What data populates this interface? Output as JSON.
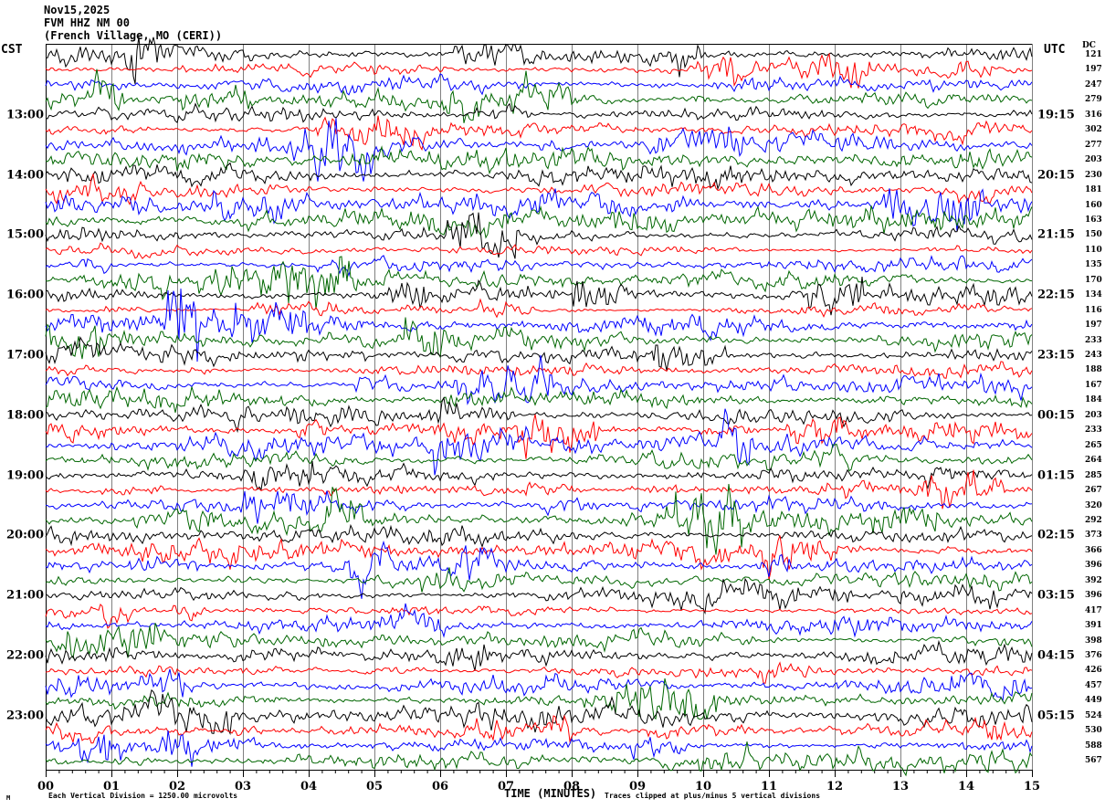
{
  "title": {
    "date": "Nov15,2025",
    "station": "FVM HHZ NM 00",
    "location": "(French Village, MO (CERI))"
  },
  "left_axis": {
    "timezone": "CST",
    "hour_labels": [
      "13:00",
      "14:00",
      "15:00",
      "16:00",
      "17:00",
      "18:00",
      "19:00",
      "20:00",
      "21:00",
      "22:00",
      "23:00"
    ]
  },
  "right_axis": {
    "timezone": "UTC",
    "dc_label": "DC",
    "hour_labels": [
      "19:15",
      "20:15",
      "21:15",
      "22:15",
      "23:15",
      "00:15",
      "01:15",
      "02:15",
      "03:15",
      "04:15",
      "05:15"
    ],
    "dc_values": [
      121,
      197,
      247,
      279,
      316,
      302,
      277,
      203,
      230,
      181,
      160,
      163,
      150,
      110,
      135,
      170,
      134,
      116,
      197,
      233,
      243,
      188,
      167,
      184,
      203,
      233,
      265,
      264,
      285,
      267,
      320,
      292,
      373,
      366,
      396,
      392,
      396,
      417,
      391,
      398,
      376,
      426,
      457,
      449,
      524,
      530,
      588,
      567
    ]
  },
  "x_axis": {
    "label": "TIME (MINUTES)",
    "tick_labels": [
      "00",
      "01",
      "02",
      "03",
      "04",
      "05",
      "06",
      "07",
      "08",
      "09",
      "10",
      "11",
      "12",
      "13",
      "14",
      "15"
    ]
  },
  "footer": {
    "scale_note": "Each Vertical Division = 1250.00 microvolts",
    "clip_note": "Traces clipped at plus/minus 5 vertical divisions",
    "corner_mark": "M"
  },
  "colors": {
    "trace_cycle": [
      "#000000",
      "#ff0000",
      "#0000ff",
      "#006600"
    ],
    "grid": "#808080",
    "frame": "#000000"
  },
  "chart_data": {
    "type": "line",
    "title": "FVM HHZ NM 00 (French Village, MO (CERI)) helicorder, Nov15,2025",
    "xlabel": "TIME (MINUTES)",
    "x_range": [
      0,
      15
    ],
    "grid": "vertical gridlines every 1 minute",
    "rows": 48,
    "minutes_per_row": 15,
    "row_color_cycle": [
      "black",
      "red",
      "blue",
      "green"
    ],
    "hour_label_row_indices": [
      4,
      8,
      12,
      16,
      20,
      24,
      28,
      32,
      36,
      40,
      44
    ],
    "left_hour_labels_cst": [
      "13:00",
      "14:00",
      "15:00",
      "16:00",
      "17:00",
      "18:00",
      "19:00",
      "20:00",
      "21:00",
      "22:00",
      "23:00"
    ],
    "right_hour_labels_utc": [
      "19:15",
      "20:15",
      "21:15",
      "22:15",
      "23:15",
      "00:15",
      "01:15",
      "02:15",
      "03:15",
      "04:15",
      "05:15"
    ],
    "dc_offset_per_row": [
      121,
      197,
      247,
      279,
      316,
      302,
      277,
      203,
      230,
      181,
      160,
      163,
      150,
      110,
      135,
      170,
      134,
      116,
      197,
      233,
      243,
      188,
      167,
      184,
      203,
      233,
      265,
      264,
      285,
      267,
      320,
      292,
      373,
      366,
      396,
      392,
      396,
      417,
      391,
      398,
      376,
      426,
      457,
      449,
      524,
      530,
      588,
      567
    ],
    "scale": "Each Vertical Division = 1250.00 microvolts",
    "clipping": "Traces clipped at plus/minus 5 vertical divisions",
    "note": "Traces are continuous seismic background noise; per-sample values are not recoverable from the image."
  }
}
